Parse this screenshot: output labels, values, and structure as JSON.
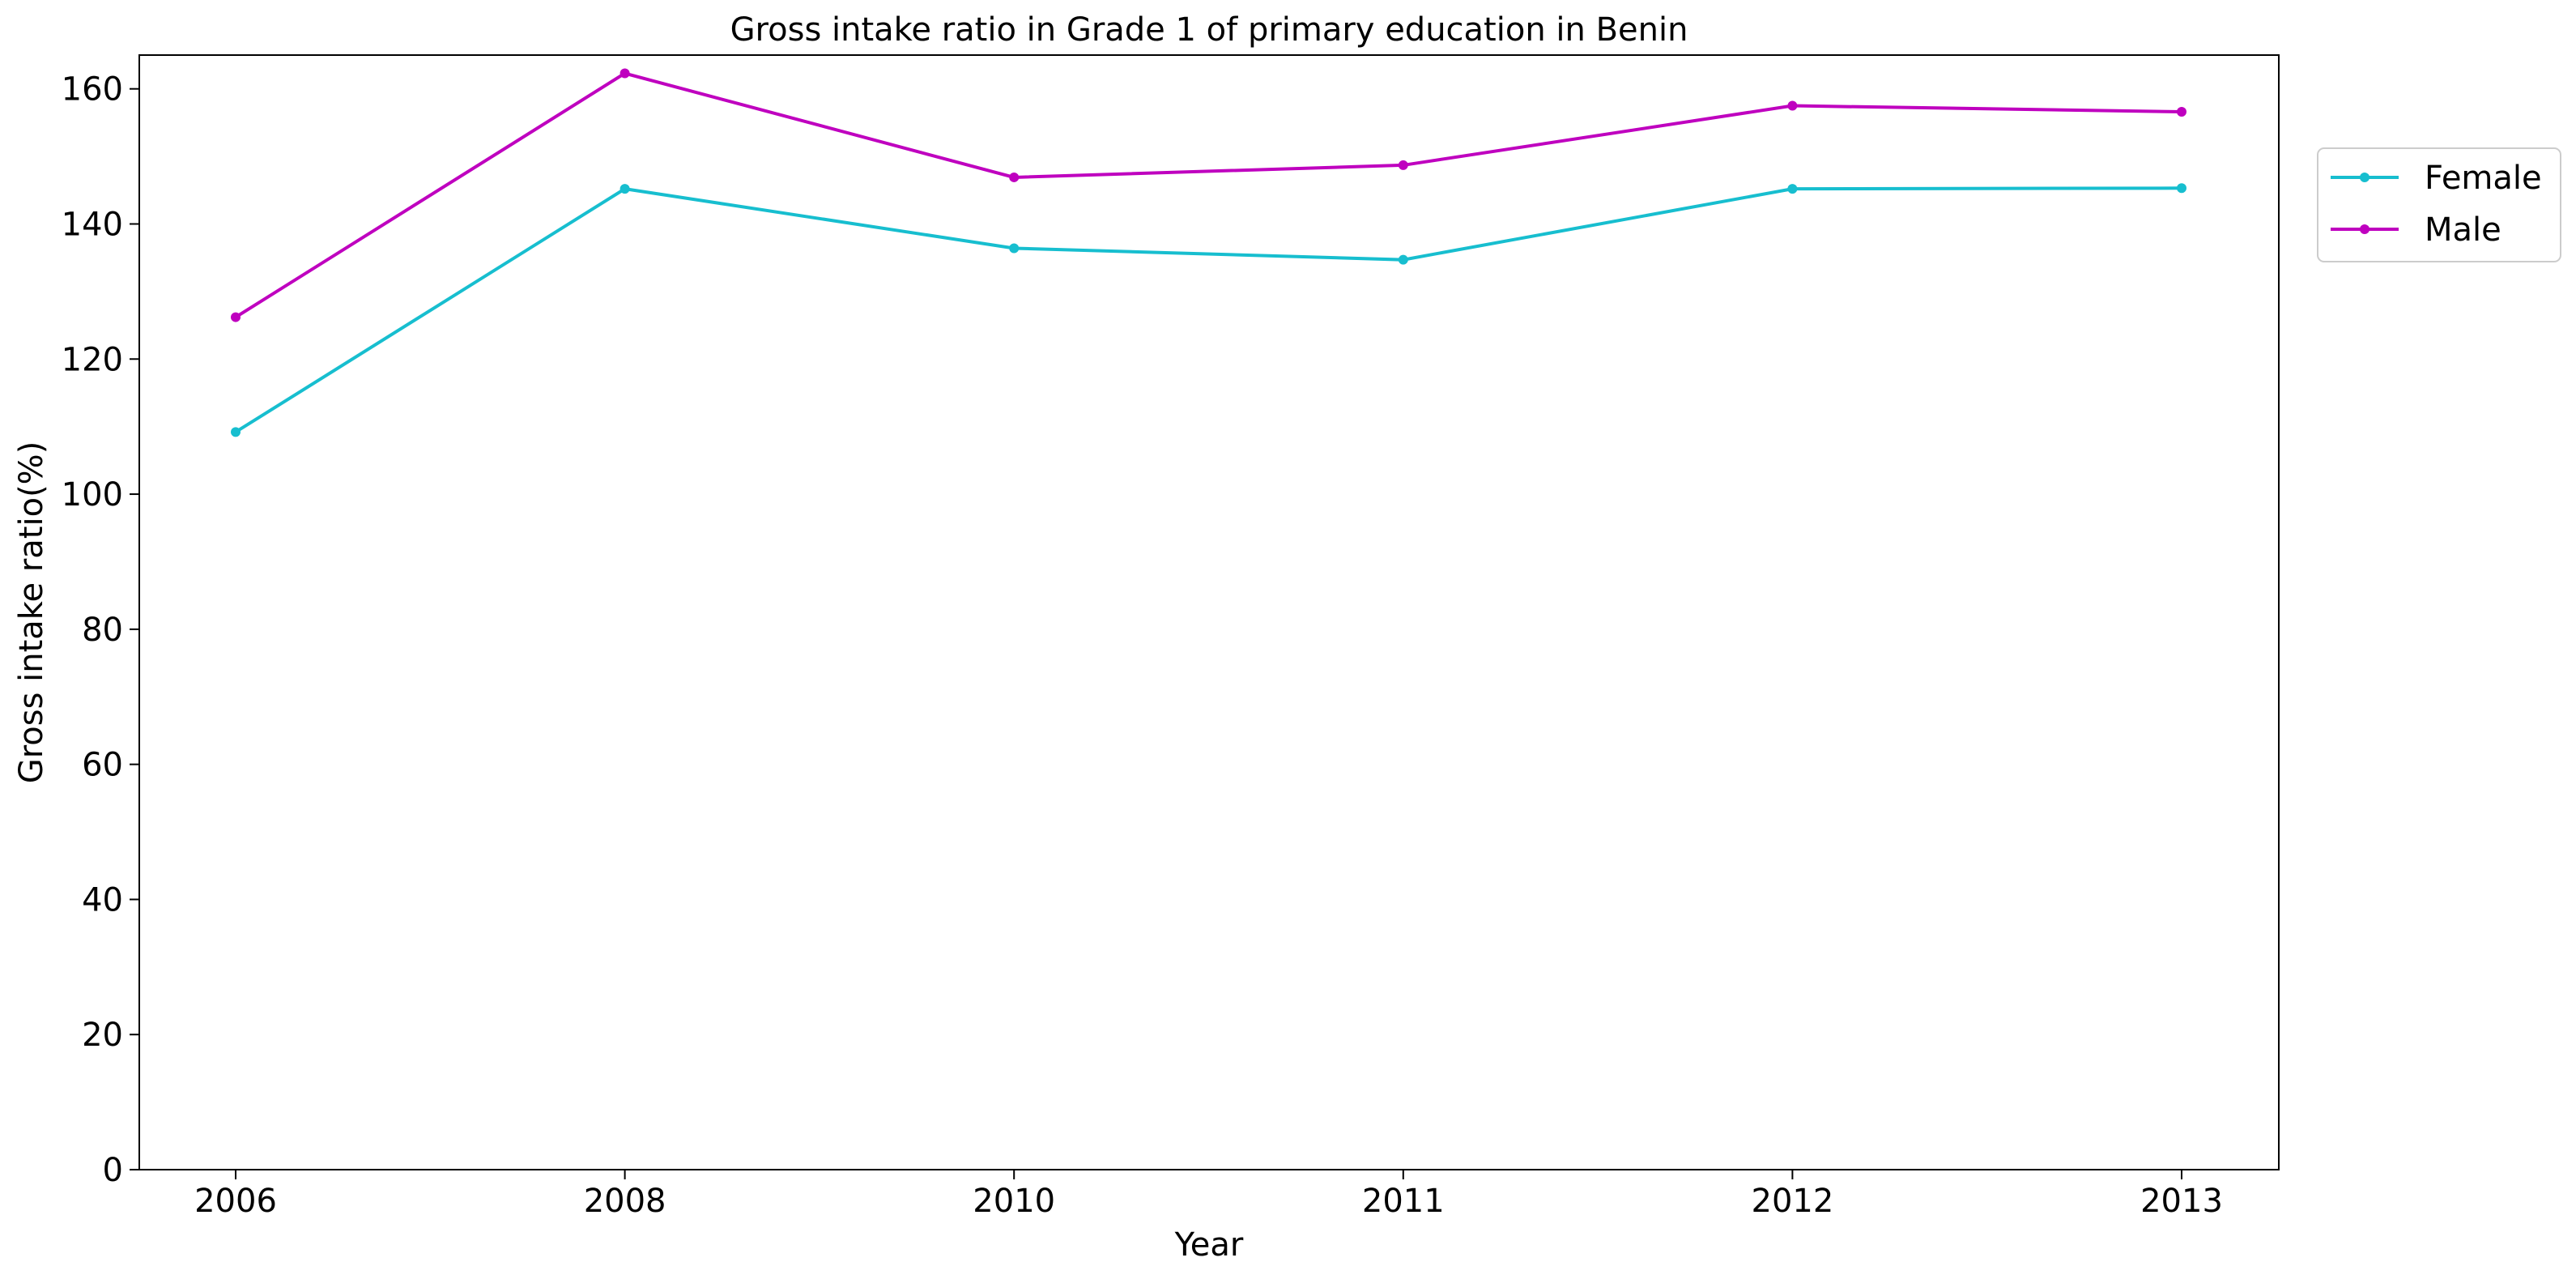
{
  "chart_data": {
    "type": "line",
    "title": "Gross intake ratio in Grade 1 of primary education in Benin",
    "xlabel": "Year",
    "ylabel": "Gross intake ratio(%)",
    "categories": [
      "2006",
      "2008",
      "2010",
      "2011",
      "2012",
      "2013"
    ],
    "ylim": [
      0,
      165
    ],
    "yticks": [
      0,
      20,
      40,
      60,
      80,
      100,
      120,
      140,
      160
    ],
    "grid": false,
    "legend_position": "top-right, outside plot",
    "series": [
      {
        "name": "Female",
        "color": "#17becf",
        "values": [
          109.2,
          145.2,
          136.4,
          134.7,
          145.2,
          145.3
        ]
      },
      {
        "name": "Male",
        "color": "#bf00bf",
        "values": [
          126.2,
          162.3,
          146.9,
          148.7,
          157.5,
          156.6
        ]
      }
    ]
  }
}
